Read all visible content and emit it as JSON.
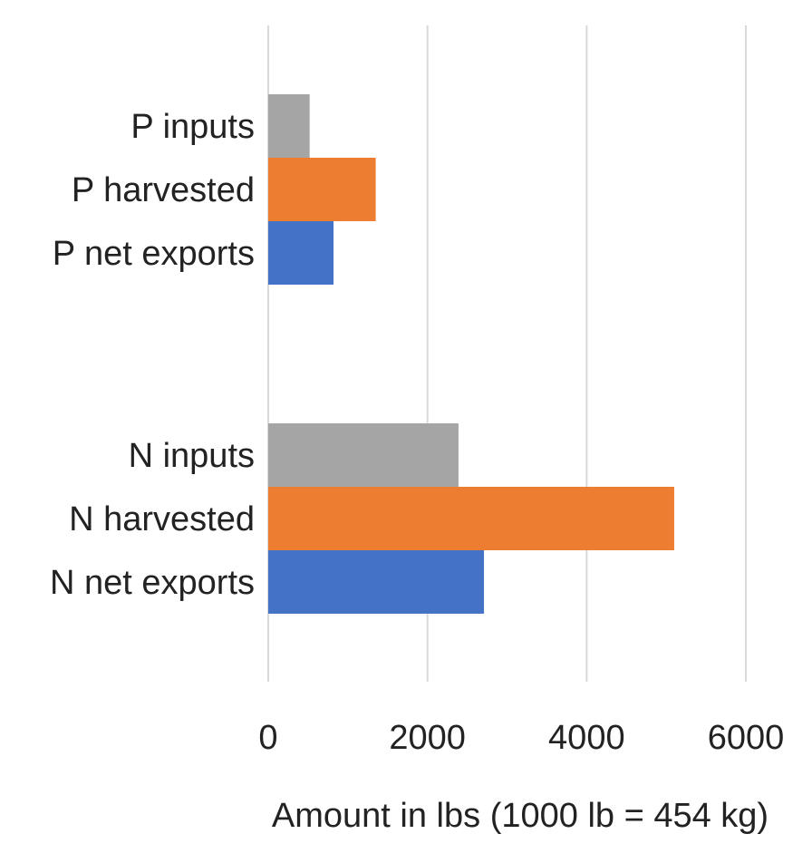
{
  "chart_data": {
    "type": "bar",
    "orientation": "horizontal",
    "title": "",
    "xlabel": "Amount in lbs (1000 lb = 454 kg)",
    "ylabel": "",
    "xlim": [
      0,
      6000
    ],
    "xticks": [
      "0",
      "2000",
      "4000",
      "6000"
    ],
    "grid": "vertical",
    "legend": "none",
    "groups": [
      {
        "bars": [
          {
            "label": "P inputs",
            "value": 520,
            "color": "#a5a5a5"
          },
          {
            "label": "P harvested",
            "value": 1350,
            "color": "#ed7d31"
          },
          {
            "label": "P net exports",
            "value": 820,
            "color": "#4472c4"
          }
        ]
      },
      {
        "bars": [
          {
            "label": "N inputs",
            "value": 2390,
            "color": "#a5a5a5"
          },
          {
            "label": "N harvested",
            "value": 5100,
            "color": "#ed7d31"
          },
          {
            "label": "N net exports",
            "value": 2710,
            "color": "#4472c4"
          }
        ]
      }
    ]
  }
}
